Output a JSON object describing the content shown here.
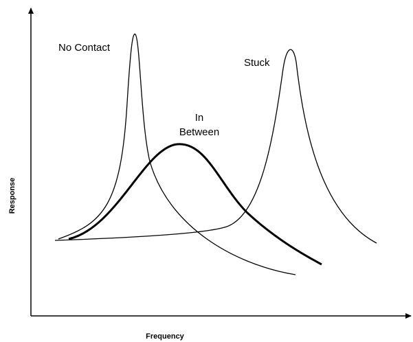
{
  "axes": {
    "x_label": "Frequency",
    "y_label": "Response"
  },
  "curves": [
    {
      "label_lines": [
        "No Contact"
      ]
    },
    {
      "label_lines": [
        "In",
        "Between"
      ]
    },
    {
      "label_lines": [
        "Stuck"
      ]
    }
  ]
}
